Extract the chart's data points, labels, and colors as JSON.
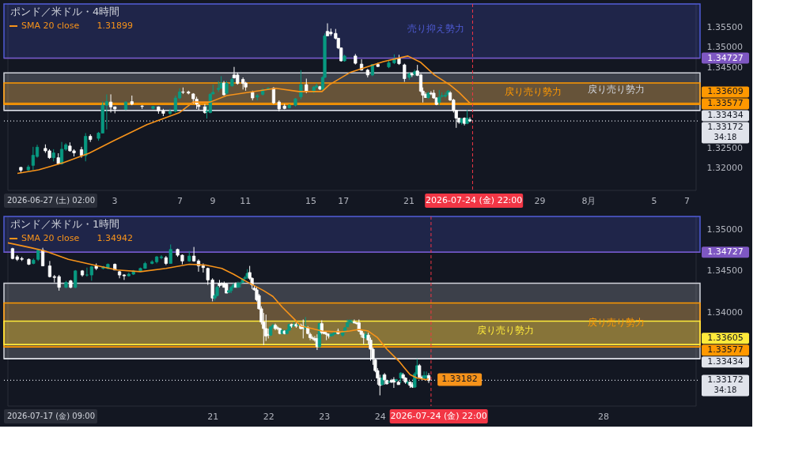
{
  "chart_data": [
    {
      "type": "candlestick",
      "title": "ポンド／米ドル・4時間",
      "legend": "top left",
      "xlim": [
        "2026-06-26T12:00",
        "2026-08-07T14:00"
      ],
      "ylim": [
        1.3145,
        1.3607
      ],
      "xticks": [
        {
          "value": "2026-07-03",
          "label": "3"
        },
        {
          "value": "2026-07-07",
          "label": "7"
        },
        {
          "value": "2026-07-09",
          "label": "9"
        },
        {
          "value": "2026-07-11",
          "label": "11"
        },
        {
          "value": "2026-07-15",
          "label": "15"
        },
        {
          "value": "2026-07-17",
          "label": "17"
        },
        {
          "value": "2026-07-21",
          "label": "21"
        },
        {
          "value": "2026-07-29",
          "label": "29"
        },
        {
          "value": "2026-08-01",
          "label": "8月"
        },
        {
          "value": "2026-08-05",
          "label": "5"
        },
        {
          "value": "2026-08-07",
          "label": "7"
        }
      ],
      "yticks": [
        {
          "value": 1.32,
          "label": "1.32000"
        },
        {
          "value": 1.325,
          "label": "1.32500"
        },
        {
          "value": 1.345,
          "label": "1.34500"
        },
        {
          "value": 1.35,
          "label": "1.35000"
        },
        {
          "value": 1.355,
          "label": "1.35500"
        }
      ],
      "x": [
        "2026-06-27T07:00",
        "2026-06-27T18:00",
        "2026-06-28T01:00",
        "2026-06-28T07:00",
        "2026-06-28T19:00",
        "2026-06-29T01:00",
        "2026-06-29T07:00",
        "2026-06-29T14:00",
        "2026-06-29T19:00",
        "2026-06-30T01:00",
        "2026-06-30T07:00",
        "2026-06-30T13:00",
        "2026-07-01T00:00",
        "2026-07-01T06:00",
        "2026-07-01T13:00",
        "2026-07-02T01:00",
        "2026-07-02T07:00",
        "2026-07-02T13:00",
        "2026-07-02T19:00",
        "2026-07-03T01:00",
        "2026-07-03T17:00",
        "2026-07-04T02:00",
        "2026-07-04T17:00",
        "2026-07-05T09:00",
        "2026-07-05T17:00",
        "2026-07-06T00:00",
        "2026-07-06T10:00",
        "2026-07-06T18:00",
        "2026-07-07T00:00",
        "2026-07-07T05:00",
        "2026-07-07T13:00",
        "2026-07-07T20:00",
        "2026-07-08T01:00",
        "2026-07-08T04:00",
        "2026-07-08T13:00",
        "2026-07-08T16:00",
        "2026-07-08T21:00",
        "2026-07-09T01:00",
        "2026-07-09T09:00",
        "2026-07-09T13:00",
        "2026-07-09T17:00",
        "2026-07-09T21:00",
        "2026-07-10T05:00",
        "2026-07-10T08:00",
        "2026-07-10T13:00",
        "2026-07-10T21:00",
        "2026-07-11T01:00",
        "2026-07-11T11:00",
        "2026-07-11T18:00",
        "2026-07-12T02:00",
        "2026-07-12T10:00",
        "2026-07-12T18:00",
        "2026-07-13T02:00",
        "2026-07-13T10:00",
        "2026-07-13T17:00",
        "2026-07-14T02:00",
        "2026-07-14T10:00",
        "2026-07-14T18:00",
        "2026-07-15T05:00",
        "2026-07-15T09:00",
        "2026-07-15T14:00",
        "2026-07-15T18:00",
        "2026-07-15T21:00",
        "2026-07-16T01:00",
        "2026-07-16T06:00",
        "2026-07-16T13:00",
        "2026-07-16T17:00",
        "2026-07-16T21:00",
        "2026-07-17T02:00",
        "2026-07-17T18:00",
        "2026-07-18T03:00",
        "2026-07-18T12:00",
        "2026-07-18T19:00",
        "2026-07-19T03:00",
        "2026-07-19T19:00",
        "2026-07-20T03:00",
        "2026-07-20T10:00",
        "2026-07-20T18:00",
        "2026-07-21T01:00",
        "2026-07-21T05:00",
        "2026-07-21T09:00",
        "2026-07-21T13:00",
        "2026-07-21T18:00",
        "2026-07-21T21:00",
        "2026-07-22T01:00",
        "2026-07-22T05:00",
        "2026-07-22T09:00",
        "2026-07-22T13:00",
        "2026-07-22T17:00",
        "2026-07-22T21:00",
        "2026-07-23T01:00",
        "2026-07-23T06:00",
        "2026-07-23T10:00",
        "2026-07-23T13:00",
        "2026-07-23T18:00",
        "2026-07-23T22:00",
        "2026-07-24T02:00",
        "2026-07-24T06:00",
        "2026-07-24T10:00",
        "2026-07-24T14:00",
        "2026-07-24T18:00"
      ],
      "ohlc": [
        [
          1.3202,
          1.3203,
          1.319,
          1.3195
        ],
        [
          1.3196,
          1.3208,
          1.3193,
          1.3203
        ],
        [
          1.3207,
          1.3253,
          1.3196,
          1.3232
        ],
        [
          1.3229,
          1.3258,
          1.3226,
          1.3252
        ],
        [
          1.3249,
          1.3259,
          1.3238,
          1.3243
        ],
        [
          1.3243,
          1.3247,
          1.3223,
          1.3226
        ],
        [
          1.3226,
          1.3247,
          1.3217,
          1.3238
        ],
        [
          1.3226,
          1.3237,
          1.3209,
          1.3211
        ],
        [
          1.3211,
          1.3265,
          1.3209,
          1.3247
        ],
        [
          1.3247,
          1.3262,
          1.3243,
          1.3258
        ],
        [
          1.3255,
          1.3264,
          1.3241,
          1.3243
        ],
        [
          1.3243,
          1.3247,
          1.3229,
          1.3238
        ],
        [
          1.3246,
          1.3253,
          1.3226,
          1.3232
        ],
        [
          1.3231,
          1.3287,
          1.3217,
          1.3279
        ],
        [
          1.3279,
          1.3284,
          1.3265,
          1.3271
        ],
        [
          1.3274,
          1.329,
          1.3268,
          1.3287
        ],
        [
          1.3287,
          1.3365,
          1.3287,
          1.3356
        ],
        [
          1.3356,
          1.3383,
          1.3296,
          1.3365
        ],
        [
          1.3364,
          1.3383,
          1.3338,
          1.3352
        ],
        [
          1.3352,
          1.3353,
          1.3336,
          1.3347
        ],
        [
          1.3346,
          1.3366,
          1.3344,
          1.3364
        ],
        [
          1.3365,
          1.338,
          1.3356,
          1.3359
        ],
        [
          1.3354,
          1.3356,
          1.3347,
          1.3353
        ],
        [
          1.3348,
          1.3354,
          1.3346,
          1.3353
        ],
        [
          1.3352,
          1.3353,
          1.3335,
          1.3342
        ],
        [
          1.3342,
          1.3347,
          1.3329,
          1.3336
        ],
        [
          1.3336,
          1.3347,
          1.3332,
          1.334
        ],
        [
          1.3341,
          1.338,
          1.3338,
          1.3374
        ],
        [
          1.3374,
          1.3398,
          1.3371,
          1.3389
        ],
        [
          1.3389,
          1.34,
          1.3384,
          1.3388
        ],
        [
          1.3389,
          1.3392,
          1.3383,
          1.3386
        ],
        [
          1.3384,
          1.3386,
          1.336,
          1.3372
        ],
        [
          1.3371,
          1.3377,
          1.3347,
          1.3359
        ],
        [
          1.3356,
          1.3359,
          1.3344,
          1.3353
        ],
        [
          1.3352,
          1.3359,
          1.3335,
          1.3338
        ],
        [
          1.334,
          1.3356,
          1.3323,
          1.3341
        ],
        [
          1.3338,
          1.3386,
          1.3336,
          1.3383
        ],
        [
          1.3384,
          1.3407,
          1.3383,
          1.3388
        ],
        [
          1.3395,
          1.3416,
          1.3389,
          1.3398
        ],
        [
          1.3398,
          1.3428,
          1.3398,
          1.3411
        ],
        [
          1.3411,
          1.3416,
          1.338,
          1.3382
        ],
        [
          1.3386,
          1.3416,
          1.3383,
          1.341
        ],
        [
          1.3404,
          1.3425,
          1.3402,
          1.342
        ],
        [
          1.3431,
          1.3451,
          1.3422,
          1.3424
        ],
        [
          1.3431,
          1.3437,
          1.3407,
          1.341
        ],
        [
          1.342,
          1.3425,
          1.3395,
          1.341
        ],
        [
          1.3411,
          1.3414,
          1.3392,
          1.3401
        ],
        [
          1.3388,
          1.3392,
          1.3368,
          1.3374
        ],
        [
          1.3376,
          1.3384,
          1.3368,
          1.338
        ],
        [
          1.3383,
          1.3398,
          1.338,
          1.3394
        ],
        [
          1.3396,
          1.3401,
          1.3394,
          1.3398
        ],
        [
          1.3398,
          1.3401,
          1.3359,
          1.3362
        ],
        [
          1.3364,
          1.3368,
          1.3341,
          1.3347
        ],
        [
          1.3354,
          1.3359,
          1.3346,
          1.3348
        ],
        [
          1.335,
          1.3359,
          1.3348,
          1.3356
        ],
        [
          1.3356,
          1.3374,
          1.3353,
          1.3372
        ],
        [
          1.3377,
          1.3443,
          1.3371,
          1.3407
        ],
        [
          1.3407,
          1.3422,
          1.3386,
          1.339
        ],
        [
          1.3389,
          1.3404,
          1.3386,
          1.3401
        ],
        [
          1.3401,
          1.341,
          1.3398,
          1.3404
        ],
        [
          1.3402,
          1.3404,
          1.3394,
          1.3396
        ],
        [
          1.3395,
          1.3428,
          1.3394,
          1.3425
        ],
        [
          1.3425,
          1.3534,
          1.3424,
          1.3528
        ],
        [
          1.3539,
          1.3559,
          1.3528,
          1.3528
        ],
        [
          1.3537,
          1.3546,
          1.3528,
          1.3533
        ],
        [
          1.3534,
          1.3545,
          1.3519,
          1.3522
        ],
        [
          1.3522,
          1.3523,
          1.3495,
          1.3498
        ],
        [
          1.3498,
          1.3499,
          1.3464,
          1.3466
        ],
        [
          1.3466,
          1.3481,
          1.3464,
          1.3478
        ],
        [
          1.3478,
          1.3483,
          1.3457,
          1.346
        ],
        [
          1.3458,
          1.347,
          1.3442,
          1.3443
        ],
        [
          1.3443,
          1.3446,
          1.3425,
          1.3431
        ],
        [
          1.3431,
          1.3458,
          1.3428,
          1.3457
        ],
        [
          1.3457,
          1.3461,
          1.3451,
          1.3452
        ],
        [
          1.3451,
          1.3467,
          1.3448,
          1.3461
        ],
        [
          1.3461,
          1.3482,
          1.3458,
          1.347
        ],
        [
          1.3472,
          1.3481,
          1.3456,
          1.3459
        ],
        [
          1.3456,
          1.3459,
          1.3414,
          1.3422
        ],
        [
          1.3425,
          1.3437,
          1.3419,
          1.3434
        ],
        [
          1.3434,
          1.3436,
          1.3426,
          1.3431
        ],
        [
          1.3434,
          1.3444,
          1.3428,
          1.3439
        ],
        [
          1.3441,
          1.3456,
          1.3428,
          1.343
        ],
        [
          1.3431,
          1.3434,
          1.3388,
          1.3391
        ],
        [
          1.3391,
          1.34,
          1.3363,
          1.3381
        ],
        [
          1.3383,
          1.3388,
          1.3374,
          1.3375
        ],
        [
          1.3375,
          1.3389,
          1.3372,
          1.3386
        ],
        [
          1.3386,
          1.3391,
          1.3381,
          1.3384
        ],
        [
          1.3386,
          1.3394,
          1.3372,
          1.3374
        ],
        [
          1.3374,
          1.3376,
          1.3356,
          1.3358
        ],
        [
          1.3363,
          1.3394,
          1.3356,
          1.3376
        ],
        [
          1.3378,
          1.3388,
          1.3375,
          1.338
        ],
        [
          1.3378,
          1.3388,
          1.3375,
          1.3381
        ],
        [
          1.3383,
          1.3394,
          1.338,
          1.3391
        ],
        [
          1.3387,
          1.3391,
          1.3366,
          1.3369
        ],
        [
          1.3369,
          1.3372,
          1.3338,
          1.3343
        ],
        [
          1.3343,
          1.3345,
          1.33,
          1.3324
        ],
        [
          1.3324,
          1.3325,
          1.331,
          1.3314
        ],
        [
          1.3313,
          1.3325,
          1.3308,
          1.3322
        ],
        [
          1.3324,
          1.3326,
          1.3306,
          1.3311
        ],
        [
          1.3311,
          1.3344,
          1.3309,
          1.3324
        ],
        [
          1.332,
          1.3326,
          1.3314,
          1.3317
        ]
      ],
      "series": [
        {
          "name": "SMA 20 close",
          "type": "line",
          "color": "#f7931a",
          "x": [
            "2026-06-27T02:00",
            "2026-06-28T09:00",
            "2026-06-29T22:00",
            "2026-07-01T11:00",
            "2026-07-02T23:00",
            "2026-07-05T00:00",
            "2026-07-07T00:00",
            "2026-07-07T20:00",
            "2026-07-08T21:00",
            "2026-07-09T21:00",
            "2026-07-12T21:00",
            "2026-07-14T07:00",
            "2026-07-15T17:00",
            "2026-07-16T04:00",
            "2026-07-17T10:00",
            "2026-07-19T11:00",
            "2026-07-20T23:00",
            "2026-07-21T18:00",
            "2026-07-22T14:00",
            "2026-07-23T13:00",
            "2026-07-24T02:00",
            "2026-07-24T18:00"
          ],
          "values": [
            1.3187,
            1.3196,
            1.3214,
            1.3237,
            1.3268,
            1.3308,
            1.3338,
            1.3364,
            1.3364,
            1.338,
            1.3398,
            1.339,
            1.339,
            1.3407,
            1.3437,
            1.3464,
            1.3478,
            1.3462,
            1.3431,
            1.3406,
            1.3388,
            1.3361
          ]
        }
      ],
      "bands": [
        {
          "axis": "y",
          "from": 1.34727,
          "to": 1.3607,
          "label": "売り抑え勢力",
          "color": "#4f5bd5"
        },
        {
          "axis": "y",
          "from": 1.33434,
          "to": 1.3436,
          "label": "戻り売り勢力",
          "color": "#d1d4dc"
        },
        {
          "axis": "y",
          "from": 1.33577,
          "to": 1.3411,
          "label": "戻り売り勢力",
          "color": "#ff9800"
        }
      ],
      "ref_lines": [
        {
          "axis": "y",
          "value": 1.34727,
          "label": "1.34727",
          "color": "#7e57c2"
        },
        {
          "axis": "y",
          "value": 1.33609,
          "label": "1.33609",
          "color": "#ff9800"
        },
        {
          "axis": "y",
          "value": 1.33577,
          "label": "1.33577",
          "color": "#ff9800"
        },
        {
          "axis": "y",
          "value": 1.33434,
          "label": "1.33434",
          "color": "#e0e3eb"
        },
        {
          "axis": "x",
          "value": "2026-07-24T22:00",
          "label": "2026-07-24 (金) 22:00",
          "color": "#f23645",
          "line_style": "dashed"
        },
        {
          "axis": "y",
          "value": 1.33172,
          "label": "1.33172",
          "color": "#e0e3eb",
          "line_style": "dotted"
        }
      ],
      "annotations": [
        "2026-06-27 (土) 02:00",
        "1.31899",
        "34:18"
      ]
    },
    {
      "type": "candlestick",
      "title": "ポンド／米ドル・1時間",
      "legend": "top left",
      "xlim": [
        "2026-07-17T08:00",
        "2026-07-29T16:00"
      ],
      "ylim": [
        1.3286,
        1.3516
      ],
      "xticks": [
        {
          "value": "2026-07-21",
          "label": "21"
        },
        {
          "value": "2026-07-22",
          "label": "22"
        },
        {
          "value": "2026-07-23",
          "label": "23"
        },
        {
          "value": "2026-07-24",
          "label": "24"
        },
        {
          "value": "2026-07-28",
          "label": "28"
        }
      ],
      "yticks": [
        {
          "value": 1.34,
          "label": "1.34000"
        },
        {
          "value": 1.345,
          "label": "1.34500"
        },
        {
          "value": 1.35,
          "label": "1.35000"
        }
      ],
      "x": [
        "2026-07-17T10:00",
        "2026-07-17T12:00",
        "2026-07-17T14:00",
        "2026-07-17T17:00",
        "2026-07-17T19:00",
        "2026-07-17T21:00",
        "2026-07-17T23:00",
        "2026-07-18T02:00",
        "2026-07-18T04:00",
        "2026-07-18T06:00",
        "2026-07-18T09:00",
        "2026-07-18T11:00",
        "2026-07-18T13:00",
        "2026-07-18T16:00",
        "2026-07-18T18:00",
        "2026-07-18T20:00",
        "2026-07-18T22:00",
        "2026-07-19T01:00",
        "2026-07-19T03:00",
        "2026-07-19T06:00",
        "2026-07-19T08:00",
        "2026-07-19T10:00",
        "2026-07-19T12:00",
        "2026-07-19T14:00",
        "2026-07-19T17:00",
        "2026-07-19T19:00",
        "2026-07-19T22:00",
        "2026-07-20T00:00",
        "2026-07-20T02:00",
        "2026-07-20T04:00",
        "2026-07-20T06:00",
        "2026-07-20T09:00",
        "2026-07-20T11:00",
        "2026-07-20T14:00",
        "2026-07-20T16:00",
        "2026-07-20T18:00",
        "2026-07-20T20:00",
        "2026-07-20T22:00",
        "2026-07-21T00:00",
        "2026-07-21T01:00",
        "2026-07-21T02:00",
        "2026-07-21T03:00",
        "2026-07-21T04:00",
        "2026-07-21T05:00",
        "2026-07-21T06:00",
        "2026-07-21T07:00",
        "2026-07-21T08:00",
        "2026-07-21T09:00",
        "2026-07-21T10:00",
        "2026-07-21T11:00",
        "2026-07-21T12:00",
        "2026-07-21T13:00",
        "2026-07-21T14:00",
        "2026-07-21T15:00",
        "2026-07-21T16:00",
        "2026-07-21T17:00",
        "2026-07-21T18:00",
        "2026-07-21T19:00",
        "2026-07-21T20:00",
        "2026-07-21T21:00",
        "2026-07-21T22:00",
        "2026-07-21T23:00",
        "2026-07-22T00:00",
        "2026-07-22T01:00",
        "2026-07-22T02:00",
        "2026-07-22T03:00",
        "2026-07-22T04:00",
        "2026-07-22T05:00",
        "2026-07-22T06:00",
        "2026-07-22T07:00",
        "2026-07-22T08:00",
        "2026-07-22T09:00",
        "2026-07-22T10:00",
        "2026-07-22T11:00",
        "2026-07-22T12:00",
        "2026-07-22T13:00",
        "2026-07-22T14:00",
        "2026-07-22T15:00",
        "2026-07-22T16:00",
        "2026-07-22T17:00",
        "2026-07-22T18:00",
        "2026-07-22T19:00",
        "2026-07-22T20:00",
        "2026-07-22T21:00",
        "2026-07-22T22:00",
        "2026-07-22T23:00",
        "2026-07-23T00:00",
        "2026-07-23T01:00",
        "2026-07-23T02:00",
        "2026-07-23T03:00",
        "2026-07-23T04:00",
        "2026-07-23T05:00",
        "2026-07-23T06:00",
        "2026-07-23T08:00",
        "2026-07-23T09:00",
        "2026-07-23T10:00",
        "2026-07-23T11:00",
        "2026-07-23T12:00",
        "2026-07-23T13:00",
        "2026-07-23T14:00",
        "2026-07-23T15:00",
        "2026-07-23T16:00",
        "2026-07-23T17:00",
        "2026-07-23T18:00",
        "2026-07-23T19:00",
        "2026-07-23T20:00",
        "2026-07-23T21:00",
        "2026-07-23T22:00",
        "2026-07-23T23:00",
        "2026-07-24T00:00",
        "2026-07-24T01:00",
        "2026-07-24T02:00",
        "2026-07-24T03:00",
        "2026-07-24T04:00",
        "2026-07-24T05:00",
        "2026-07-24T06:00",
        "2026-07-24T07:00",
        "2026-07-24T08:00",
        "2026-07-24T09:00",
        "2026-07-24T10:00",
        "2026-07-24T11:00",
        "2026-07-24T12:00",
        "2026-07-24T13:00",
        "2026-07-24T14:00",
        "2026-07-24T15:00",
        "2026-07-24T16:00",
        "2026-07-24T17:00",
        "2026-07-24T18:00",
        "2026-07-24T19:00",
        "2026-07-24T20:00",
        "2026-07-24T21:00"
      ],
      "ohlc": [
        [
          1.3477,
          1.3478,
          1.3464,
          1.3465
        ],
        [
          1.3467,
          1.3469,
          1.3462,
          1.3464
        ],
        [
          1.3465,
          1.3467,
          1.3462,
          1.3464
        ],
        [
          1.3464,
          1.3465,
          1.3457,
          1.3458
        ],
        [
          1.3459,
          1.3465,
          1.3458,
          1.3463
        ],
        [
          1.3464,
          1.3477,
          1.3462,
          1.3475
        ],
        [
          1.3475,
          1.3478,
          1.3456,
          1.3456
        ],
        [
          1.3456,
          1.3462,
          1.3442,
          1.3443
        ],
        [
          1.3443,
          1.3445,
          1.3436,
          1.3442
        ],
        [
          1.3443,
          1.3445,
          1.3426,
          1.343
        ],
        [
          1.343,
          1.3438,
          1.3429,
          1.3436
        ],
        [
          1.3438,
          1.3439,
          1.3429,
          1.343
        ],
        [
          1.343,
          1.3451,
          1.3429,
          1.345
        ],
        [
          1.345,
          1.3451,
          1.3443,
          1.3445
        ],
        [
          1.3445,
          1.3454,
          1.3443,
          1.3445
        ],
        [
          1.3445,
          1.3456,
          1.3438,
          1.3455
        ],
        [
          1.3456,
          1.3459,
          1.3451,
          1.3453
        ],
        [
          1.3453,
          1.3456,
          1.3452,
          1.3455
        ],
        [
          1.3453,
          1.3459,
          1.3452,
          1.3458
        ],
        [
          1.3458,
          1.3459,
          1.3451,
          1.3451
        ],
        [
          1.3449,
          1.345,
          1.3441,
          1.3445
        ],
        [
          1.3445,
          1.3446,
          1.3439,
          1.3444
        ],
        [
          1.3444,
          1.3448,
          1.3443,
          1.3446
        ],
        [
          1.3446,
          1.3451,
          1.3445,
          1.345
        ],
        [
          1.345,
          1.3454,
          1.3449,
          1.3453
        ],
        [
          1.3453,
          1.3461,
          1.3453,
          1.3459
        ],
        [
          1.3459,
          1.3463,
          1.3458,
          1.3461
        ],
        [
          1.3461,
          1.3468,
          1.3459,
          1.3467
        ],
        [
          1.3466,
          1.3469,
          1.3464,
          1.3467
        ],
        [
          1.3466,
          1.3468,
          1.3457,
          1.3459
        ],
        [
          1.3459,
          1.3482,
          1.3459,
          1.3476
        ],
        [
          1.3476,
          1.3477,
          1.3467,
          1.3469
        ],
        [
          1.3469,
          1.347,
          1.3458,
          1.3462
        ],
        [
          1.3462,
          1.3474,
          1.3461,
          1.3468
        ],
        [
          1.3468,
          1.3479,
          1.3461,
          1.3462
        ],
        [
          1.3462,
          1.3464,
          1.3449,
          1.3456
        ],
        [
          1.3456,
          1.3459,
          1.3448,
          1.3454
        ],
        [
          1.3453,
          1.3454,
          1.3433,
          1.3439
        ],
        [
          1.3439,
          1.3441,
          1.3413,
          1.3417
        ],
        [
          1.3417,
          1.3422,
          1.3414,
          1.342
        ],
        [
          1.342,
          1.3432,
          1.3419,
          1.343
        ],
        [
          1.3435,
          1.3439,
          1.343,
          1.3432
        ],
        [
          1.3435,
          1.3436,
          1.3432,
          1.3434
        ],
        [
          1.3435,
          1.3437,
          1.343,
          1.343
        ],
        [
          1.3434,
          1.3435,
          1.3423,
          1.3423
        ],
        [
          1.3424,
          1.3427,
          1.3423,
          1.3426
        ],
        [
          1.3426,
          1.3432,
          1.3423,
          1.343
        ],
        [
          1.343,
          1.3435,
          1.3429,
          1.3433
        ],
        [
          1.3434,
          1.3436,
          1.343,
          1.343
        ],
        [
          1.343,
          1.3437,
          1.343,
          1.3435
        ],
        [
          1.3435,
          1.3437,
          1.343,
          1.3435
        ],
        [
          1.3436,
          1.3441,
          1.3435,
          1.344
        ],
        [
          1.3441,
          1.3444,
          1.3439,
          1.3442
        ],
        [
          1.3443,
          1.3452,
          1.344,
          1.3447
        ],
        [
          1.3448,
          1.3456,
          1.3439,
          1.3441
        ],
        [
          1.3441,
          1.3442,
          1.3428,
          1.3433
        ],
        [
          1.3429,
          1.3432,
          1.3426,
          1.3427
        ],
        [
          1.3427,
          1.343,
          1.3413,
          1.3415
        ],
        [
          1.342,
          1.3422,
          1.3403,
          1.3404
        ],
        [
          1.3404,
          1.3407,
          1.3385,
          1.3388
        ],
        [
          1.3388,
          1.3399,
          1.336,
          1.338
        ],
        [
          1.338,
          1.3397,
          1.3365,
          1.3371
        ],
        [
          1.3373,
          1.338,
          1.3368,
          1.3372
        ],
        [
          1.3372,
          1.3383,
          1.3371,
          1.3382
        ],
        [
          1.3382,
          1.3386,
          1.338,
          1.3384
        ],
        [
          1.3384,
          1.3386,
          1.3378,
          1.338
        ],
        [
          1.3381,
          1.3383,
          1.3378,
          1.338
        ],
        [
          1.338,
          1.3381,
          1.3373,
          1.3374
        ],
        [
          1.3374,
          1.3379,
          1.3373,
          1.3378
        ],
        [
          1.3377,
          1.3378,
          1.3373,
          1.3374
        ],
        [
          1.3374,
          1.3379,
          1.3373,
          1.3378
        ],
        [
          1.3378,
          1.3386,
          1.3377,
          1.3385
        ],
        [
          1.3385,
          1.3386,
          1.3381,
          1.3383
        ],
        [
          1.3383,
          1.3388,
          1.3382,
          1.3384
        ],
        [
          1.3385,
          1.3387,
          1.3381,
          1.3383
        ],
        [
          1.3384,
          1.3387,
          1.3383,
          1.3385
        ],
        [
          1.3384,
          1.3386,
          1.3379,
          1.338
        ],
        [
          1.3383,
          1.3391,
          1.3368,
          1.338
        ],
        [
          1.338,
          1.3394,
          1.3379,
          1.3383
        ],
        [
          1.3381,
          1.3383,
          1.3373,
          1.3374
        ],
        [
          1.3373,
          1.3375,
          1.3366,
          1.3369
        ],
        [
          1.3369,
          1.3371,
          1.3366,
          1.3368
        ],
        [
          1.3368,
          1.3371,
          1.3364,
          1.3366
        ],
        [
          1.3368,
          1.3373,
          1.3354,
          1.3358
        ],
        [
          1.3358,
          1.3387,
          1.3357,
          1.3386
        ],
        [
          1.3386,
          1.339,
          1.3373,
          1.3375
        ],
        [
          1.3376,
          1.3377,
          1.3373,
          1.3374
        ],
        [
          1.3374,
          1.3376,
          1.3366,
          1.3373
        ],
        [
          1.3373,
          1.3374,
          1.3368,
          1.3371
        ],
        [
          1.3371,
          1.3374,
          1.3371,
          1.3373
        ],
        [
          1.3373,
          1.3376,
          1.3371,
          1.3374
        ],
        [
          1.3374,
          1.3377,
          1.3373,
          1.3376
        ],
        [
          1.3377,
          1.338,
          1.3373,
          1.3374
        ],
        [
          1.3372,
          1.3376,
          1.337,
          1.3376
        ],
        [
          1.3376,
          1.3382,
          1.3375,
          1.3381
        ],
        [
          1.3382,
          1.3391,
          1.3382,
          1.3387
        ],
        [
          1.3388,
          1.3391,
          1.3385,
          1.339
        ],
        [
          1.3388,
          1.3391,
          1.3386,
          1.3388
        ],
        [
          1.3388,
          1.3391,
          1.3386,
          1.3387
        ],
        [
          1.3387,
          1.3388,
          1.3385,
          1.3386
        ],
        [
          1.3387,
          1.3391,
          1.3376,
          1.3377
        ],
        [
          1.3377,
          1.3379,
          1.3369,
          1.3373
        ],
        [
          1.3373,
          1.3375,
          1.3361,
          1.3369
        ],
        [
          1.3369,
          1.3378,
          1.3367,
          1.3373
        ],
        [
          1.3372,
          1.3375,
          1.3361,
          1.3366
        ],
        [
          1.3366,
          1.3369,
          1.3341,
          1.3355
        ],
        [
          1.3355,
          1.3357,
          1.3336,
          1.3343
        ],
        [
          1.3342,
          1.3343,
          1.3327,
          1.3329
        ],
        [
          1.3329,
          1.3332,
          1.3312,
          1.332
        ],
        [
          1.332,
          1.3324,
          1.3299,
          1.3311
        ],
        [
          1.3312,
          1.3324,
          1.3311,
          1.332
        ],
        [
          1.3324,
          1.3326,
          1.3312,
          1.3318
        ],
        [
          1.3317,
          1.3318,
          1.3312,
          1.3313
        ],
        [
          1.3315,
          1.3317,
          1.3314,
          1.3315
        ],
        [
          1.3317,
          1.3319,
          1.3314,
          1.3315
        ],
        [
          1.3318,
          1.3321,
          1.3308,
          1.3315
        ],
        [
          1.3317,
          1.3319,
          1.3315,
          1.3318
        ],
        [
          1.3315,
          1.3317,
          1.3312,
          1.3312
        ],
        [
          1.332,
          1.3327,
          1.3314,
          1.3326
        ],
        [
          1.3324,
          1.3326,
          1.3318,
          1.332
        ],
        [
          1.332,
          1.3321,
          1.3313,
          1.3315
        ],
        [
          1.3314,
          1.3317,
          1.3312,
          1.3315
        ],
        [
          1.3315,
          1.3316,
          1.3308,
          1.3311
        ],
        [
          1.3312,
          1.3315,
          1.3308,
          1.3309
        ],
        [
          1.3309,
          1.3327,
          1.3308,
          1.3325
        ],
        [
          1.3325,
          1.3343,
          1.3324,
          1.3335
        ],
        [
          1.3335,
          1.3337,
          1.332,
          1.3321
        ],
        [
          1.3321,
          1.3323,
          1.3318,
          1.332
        ],
        [
          1.332,
          1.3328,
          1.3318,
          1.3323
        ],
        [
          1.3321,
          1.3328,
          1.3318,
          1.3323
        ],
        [
          1.3323,
          1.3326,
          1.3314,
          1.3317
        ]
      ],
      "series": [
        {
          "name": "SMA 20 close",
          "type": "line",
          "color": "#f7931a",
          "x": [
            "2026-07-17T08:00",
            "2026-07-17T18:00",
            "2026-07-18T00:00",
            "2026-07-18T10:00",
            "2026-07-18T21:00",
            "2026-07-19T07:00",
            "2026-07-19T17:00",
            "2026-07-20T04:00",
            "2026-07-20T14:00",
            "2026-07-20T21:00",
            "2026-07-21T04:00",
            "2026-07-21T09:00",
            "2026-07-21T14:00",
            "2026-07-21T18:00",
            "2026-07-21T22:00",
            "2026-07-22T02:00",
            "2026-07-22T06:00",
            "2026-07-22T11:00",
            "2026-07-22T14:00",
            "2026-07-22T19:00",
            "2026-07-22T23:00",
            "2026-07-23T07:00",
            "2026-07-23T11:00",
            "2026-07-23T15:00",
            "2026-07-23T19:00",
            "2026-07-23T23:00",
            "2026-07-24T03:00",
            "2026-07-24T08:00",
            "2026-07-24T13:00",
            "2026-07-24T16:00",
            "2026-07-24T20:00",
            "2026-07-24T21:00"
          ],
          "values": [
            1.3484,
            1.3478,
            1.3474,
            1.3464,
            1.3457,
            1.3451,
            1.3449,
            1.3453,
            1.3458,
            1.3457,
            1.3453,
            1.3446,
            1.3438,
            1.3432,
            1.3426,
            1.3419,
            1.3406,
            1.3392,
            1.3383,
            1.338,
            1.3377,
            1.3376,
            1.3377,
            1.3379,
            1.3377,
            1.3369,
            1.3355,
            1.3341,
            1.3324,
            1.332,
            1.3318,
            1.3319
          ]
        }
      ],
      "bands": [
        {
          "axis": "y",
          "from": 1.34727,
          "to": 1.3516,
          "label": null,
          "color": "#4f5bd5"
        },
        {
          "axis": "y",
          "from": 1.33434,
          "to": 1.3435,
          "label": null,
          "color": "#d1d4dc"
        },
        {
          "axis": "y",
          "from": 1.33577,
          "to": 1.3411,
          "label": "戻り売り勢力",
          "color": "#ff9800"
        },
        {
          "axis": "y",
          "from": 1.33605,
          "to": 1.3389,
          "label": "戻り売り勢力",
          "color": "#ffeb3b"
        }
      ],
      "ref_lines": [
        {
          "axis": "y",
          "value": 1.34727,
          "label": "1.34727",
          "color": "#7e57c2"
        },
        {
          "axis": "y",
          "value": 1.33605,
          "label": "1.33605",
          "color": "#ffeb3b"
        },
        {
          "axis": "y",
          "value": 1.33577,
          "label": "1.33577",
          "color": "#ff9800"
        },
        {
          "axis": "y",
          "value": 1.33434,
          "label": "1.33434",
          "color": "#e0e3eb"
        },
        {
          "axis": "x",
          "value": "2026-07-24T22:00",
          "label": "2026-07-24 (金) 22:00",
          "color": "#f23645",
          "line_style": "dashed"
        },
        {
          "axis": "y",
          "value": 1.33172,
          "label": "1.33172",
          "color": "#e0e3eb",
          "line_style": "dotted"
        }
      ],
      "annotations": [
        "2026-07-17 (金) 09:00",
        "1.34942",
        "34:18",
        {
          "text": "1.33182",
          "x": "2026-07-24T21:00",
          "y": 1.33182
        }
      ]
    }
  ]
}
